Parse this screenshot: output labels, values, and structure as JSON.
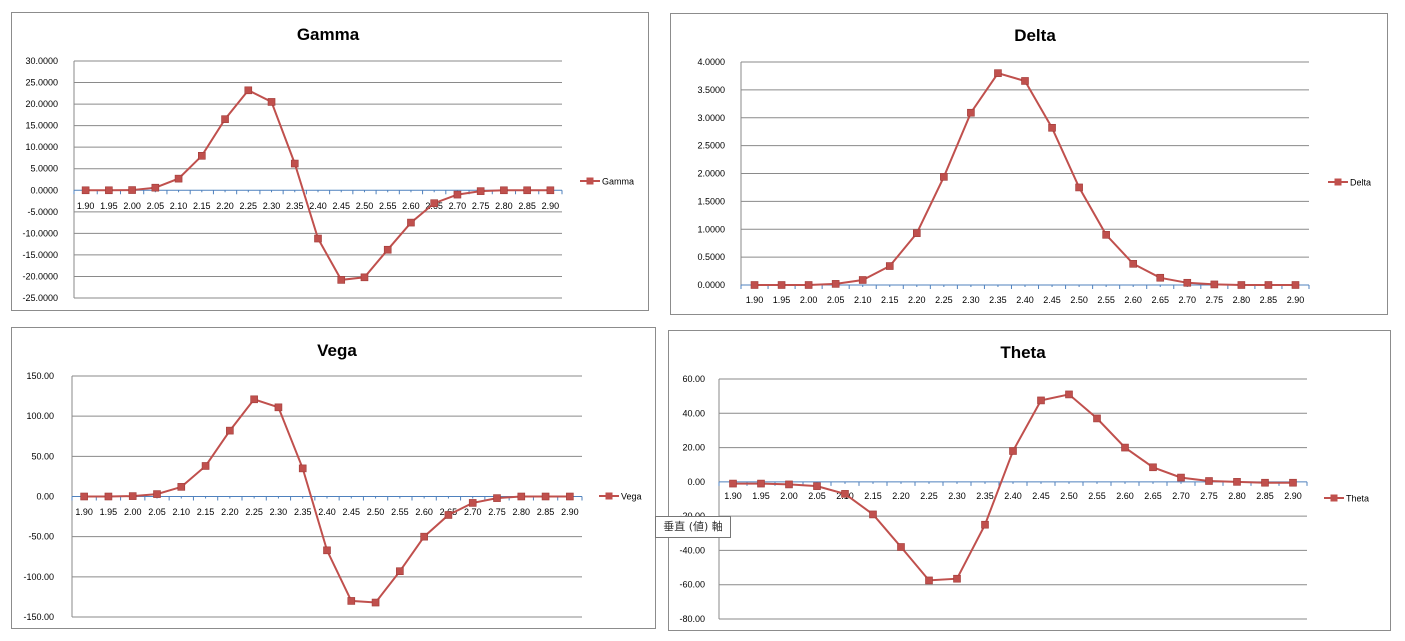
{
  "chart_data": [
    {
      "type": "line",
      "title": "Gamma",
      "legend": "Gamma",
      "legend_position": "right",
      "ylim": [
        -25,
        30
      ],
      "ystep": 5,
      "ytick_decimals": 4,
      "categories": [
        "1.90",
        "1.95",
        "2.00",
        "2.05",
        "2.10",
        "2.15",
        "2.20",
        "2.25",
        "2.30",
        "2.35",
        "2.40",
        "2.45",
        "2.50",
        "2.55",
        "2.60",
        "2.65",
        "2.70",
        "2.75",
        "2.80",
        "2.85",
        "2.90"
      ],
      "values": [
        0.0,
        0.0,
        0.05,
        0.6,
        2.7,
        8.0,
        16.5,
        23.2,
        20.5,
        6.2,
        -11.2,
        -20.8,
        -20.2,
        -13.8,
        -7.5,
        -3.0,
        -1.0,
        -0.2,
        0.0,
        0.0,
        0.0
      ],
      "color": "#c0504d"
    },
    {
      "type": "line",
      "title": "Delta",
      "legend": "Delta",
      "legend_position": "right",
      "ylim": [
        0,
        4
      ],
      "ystep": 0.5,
      "ytick_decimals": 4,
      "categories": [
        "1.90",
        "1.95",
        "2.00",
        "2.05",
        "2.10",
        "2.15",
        "2.20",
        "2.25",
        "2.30",
        "2.35",
        "2.40",
        "2.45",
        "2.50",
        "2.55",
        "2.60",
        "2.65",
        "2.70",
        "2.75",
        "2.80",
        "2.85",
        "2.90"
      ],
      "values": [
        0.0,
        0.0,
        0.0,
        0.02,
        0.09,
        0.34,
        0.93,
        1.94,
        3.09,
        3.8,
        3.66,
        2.82,
        1.75,
        0.9,
        0.38,
        0.13,
        0.04,
        0.01,
        0.0,
        0.0,
        0.0
      ],
      "color": "#c0504d"
    },
    {
      "type": "line",
      "title": "Vega",
      "legend": "Vega",
      "legend_position": "right",
      "ylim": [
        -150,
        150
      ],
      "ystep": 50,
      "ytick_decimals": 2,
      "categories": [
        "1.90",
        "1.95",
        "2.00",
        "2.05",
        "2.10",
        "2.15",
        "2.20",
        "2.25",
        "2.30",
        "2.35",
        "2.40",
        "2.45",
        "2.50",
        "2.55",
        "2.60",
        "2.65",
        "2.70",
        "2.75",
        "2.80",
        "2.85",
        "2.90"
      ],
      "values": [
        0.0,
        0.0,
        0.5,
        3.0,
        12.0,
        38.0,
        82.0,
        121.0,
        111.0,
        35.0,
        -67.0,
        -130.0,
        -132.0,
        -93.0,
        -50.0,
        -23.0,
        -8.0,
        -2.0,
        0.0,
        0.0,
        0.0
      ],
      "color": "#c0504d"
    },
    {
      "type": "line",
      "title": "Theta",
      "legend": "Theta",
      "legend_position": "right",
      "ylim": [
        -80,
        60
      ],
      "ystep": 20,
      "ytick_decimals": 2,
      "categories": [
        "1.90",
        "1.95",
        "2.00",
        "2.05",
        "2.10",
        "2.15",
        "2.20",
        "2.25",
        "2.30",
        "2.35",
        "2.40",
        "2.45",
        "2.50",
        "2.55",
        "2.60",
        "2.65",
        "2.70",
        "2.75",
        "2.80",
        "2.85",
        "2.90"
      ],
      "values": [
        -1.0,
        -1.0,
        -1.5,
        -2.5,
        -7.0,
        -19.0,
        -38.0,
        -57.5,
        -56.5,
        -25.0,
        18.0,
        47.5,
        51.0,
        37.0,
        20.0,
        8.5,
        2.5,
        0.5,
        0.0,
        -0.5,
        -0.5
      ],
      "color": "#c0504d"
    }
  ],
  "tooltip": {
    "text": "垂直 (値) 軸"
  }
}
